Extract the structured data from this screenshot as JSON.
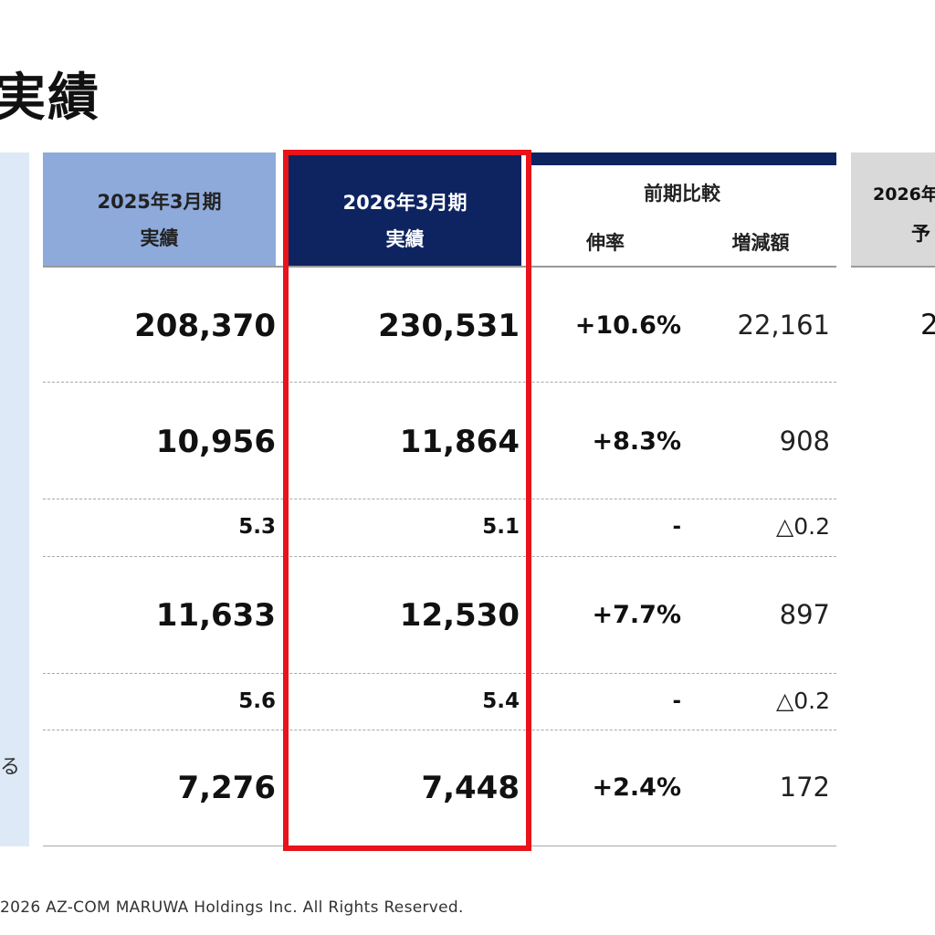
{
  "title": "実績",
  "header": {
    "prev": {
      "line1": "2025年3月期",
      "line2": "実績"
    },
    "curr": {
      "line1": "2026年3月期",
      "line2": "実績"
    },
    "compare": {
      "title": "前期比較",
      "growth": "伸率",
      "delta": "増減額"
    },
    "forecast": {
      "line1": "2026年",
      "line2": "予"
    }
  },
  "left_sliver": "る",
  "forecast_partial_value": "2",
  "rows": [
    {
      "prev": "208,370",
      "curr": "230,531",
      "growth": "+10.6%",
      "delta": "22,161"
    },
    {
      "prev": "10,956",
      "curr": "11,864",
      "growth": "+8.3%",
      "delta": "908"
    },
    {
      "prev": "5.3",
      "curr": "5.1",
      "growth": "-",
      "delta": "△0.2"
    },
    {
      "prev": "11,633",
      "curr": "12,530",
      "growth": "+7.7%",
      "delta": "897"
    },
    {
      "prev": "5.6",
      "curr": "5.4",
      "growth": "-",
      "delta": "△0.2"
    },
    {
      "prev": "7,276",
      "curr": "7,448",
      "growth": "+2.4%",
      "delta": "172"
    }
  ],
  "footer": "2026 AZ-COM MARUWA Holdings Inc. All Rights Reserved.",
  "colors": {
    "navy": "#0d2461",
    "light_blue": "#8eaadb",
    "highlight": "#e8131b",
    "panel": "#dde9f6"
  }
}
